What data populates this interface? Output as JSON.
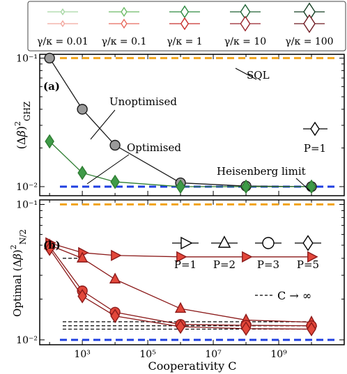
{
  "legend": {
    "entries": [
      {
        "label": "γ/κ = 0.01",
        "color_green": "#a6d6a3",
        "color_red": "#f2a79e"
      },
      {
        "label": "γ/κ = 0.1",
        "color_green": "#6cbb66",
        "color_red": "#e76b5e"
      },
      {
        "label": "γ/κ = 1",
        "color_green": "#2e8b42",
        "color_red": "#c8302d"
      },
      {
        "label": "γ/κ = 10",
        "color_green": "#1d6233",
        "color_red": "#98232a"
      },
      {
        "label": "γ/κ = 100",
        "color_green": "#143d22",
        "color_red": "#6e1a22"
      }
    ]
  },
  "chart_data": [
    {
      "panel": "(a)",
      "type": "line",
      "ylabel": "(Δβ)²_GHZ",
      "xscale": "log",
      "yscale": "log",
      "xlim": [
        50,
        100000000000.0
      ],
      "ylim": [
        0.0085,
        0.107
      ],
      "yticks": [
        0.01,
        0.1
      ],
      "yticklabels": [
        "10⁻²",
        "10⁻¹"
      ],
      "series": [
        {
          "name": "Unoptimised",
          "marker": "circle",
          "color": "#1a1a1a",
          "fill": "#9a9a9a",
          "x": [
            100,
            1000,
            10000,
            1000000,
            100000000,
            10000000000
          ],
          "y": [
            0.1,
            0.04,
            0.021,
            0.0107,
            0.0101,
            0.01
          ]
        },
        {
          "name": "Optimised",
          "marker": "diamond",
          "color": "#2e7d32",
          "fill": "#3f9b48",
          "x": [
            100,
            1000,
            10000,
            1000000,
            100000000,
            10000000000
          ],
          "y": [
            0.0225,
            0.0128,
            0.0109,
            0.01,
            0.01,
            0.01
          ]
        }
      ],
      "reference_lines": [
        {
          "name": "SQL",
          "y": 0.1,
          "color": "#f2a51d",
          "style": "dashed"
        },
        {
          "name": "Heisenberg limit",
          "y": 0.01,
          "color": "#1f3fe0",
          "style": "dashed"
        }
      ],
      "annotations": [
        "SQL",
        "Unoptimised",
        "Optimised",
        "Heisenberg limit"
      ],
      "marker_legend": [
        {
          "marker": "diamond",
          "label": "P=1"
        }
      ]
    },
    {
      "panel": "(b)",
      "type": "line",
      "ylabel": "Optimal (Δβ)²_N/2",
      "xlabel": "Cooperativity C",
      "xscale": "log",
      "yscale": "log",
      "xlim": [
        50,
        100000000000.0
      ],
      "ylim": [
        0.0092,
        0.108
      ],
      "xticks": [
        1000,
        100000,
        10000000,
        1000000000
      ],
      "xticklabels": [
        "10³",
        "10⁵",
        "10⁷",
        "10⁹"
      ],
      "yticks": [
        0.01,
        0.1
      ],
      "yticklabels": [
        "10⁻²",
        "10⁻¹"
      ],
      "series": [
        {
          "name": "P=1",
          "marker": "triangle-right",
          "color": "#8b1a1a",
          "fill": "#e2473a",
          "x": [
            100,
            1000,
            10000,
            1000000,
            100000000,
            10000000000
          ],
          "y": [
            0.052,
            0.044,
            0.042,
            0.041,
            0.041,
            0.041
          ]
        },
        {
          "name": "P=2",
          "marker": "triangle-up",
          "color": "#8b1a1a",
          "fill": "#e2473a",
          "x": [
            100,
            1000,
            10000,
            1000000,
            100000000,
            10000000000
          ],
          "y": [
            0.05,
            0.04,
            0.028,
            0.017,
            0.014,
            0.0135
          ]
        },
        {
          "name": "P=3",
          "marker": "circle",
          "color": "#8b1a1a",
          "fill": "#e2473a",
          "x": [
            100,
            1000,
            10000,
            1000000,
            100000000,
            10000000000
          ],
          "y": [
            0.049,
            0.023,
            0.016,
            0.013,
            0.0128,
            0.0127
          ]
        },
        {
          "name": "P=5",
          "marker": "diamond",
          "color": "#8b1a1a",
          "fill": "#e2473a",
          "x": [
            100,
            1000,
            10000,
            1000000,
            100000000,
            10000000000
          ],
          "y": [
            0.047,
            0.021,
            0.015,
            0.0125,
            0.0121,
            0.012
          ]
        }
      ],
      "reference_lines": [
        {
          "name": "SQL",
          "y": 0.1,
          "color": "#f2a51d",
          "style": "dashed"
        },
        {
          "name": "Heisenberg limit",
          "y": 0.01,
          "color": "#1f3fe0",
          "style": "dashed"
        },
        {
          "name": "C → ∞ (P=1)",
          "y": 0.04,
          "color": "#000000",
          "style": "dashed",
          "x_end": 1000
        },
        {
          "name": "C → ∞ (P=2)",
          "y": 0.0136,
          "color": "#000000",
          "style": "dashed",
          "x_end": 10000000000
        },
        {
          "name": "C → ∞ (P=3)",
          "y": 0.0127,
          "color": "#000000",
          "style": "dashed",
          "x_end": 10000000000
        },
        {
          "name": "C → ∞ (P=5)",
          "y": 0.012,
          "color": "#000000",
          "style": "dashed",
          "x_end": 10000000000
        }
      ],
      "marker_legend": [
        {
          "marker": "triangle-right",
          "label": "P=1"
        },
        {
          "marker": "triangle-up",
          "label": "P=2"
        },
        {
          "marker": "circle",
          "label": "P=3"
        },
        {
          "marker": "diamond",
          "label": "P=5"
        }
      ],
      "dashed_legend_label": "C → ∞"
    }
  ]
}
